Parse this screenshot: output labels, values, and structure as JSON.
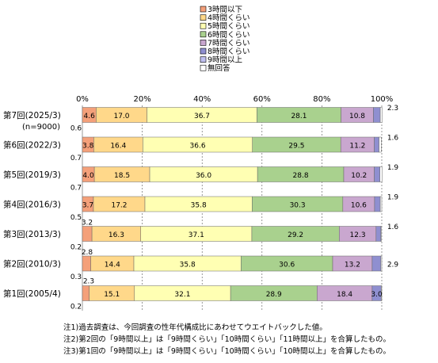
{
  "chart_data": {
    "type": "bar",
    "orientation": "horizontal",
    "stacked": true,
    "percent_stacked": true,
    "xlim": [
      0,
      100
    ],
    "x_ticks": [
      "0%",
      "20%",
      "40%",
      "60%",
      "80%",
      "100%"
    ],
    "grid": "vertical dashed",
    "legend": "top-center",
    "categories": [
      {
        "label": "第7回(2025/3)",
        "sublabel": "(n=9000)"
      },
      {
        "label": "第6回(2022/3)",
        "sublabel": ""
      },
      {
        "label": "第5回(2019/3)",
        "sublabel": ""
      },
      {
        "label": "第4回(2016/3)",
        "sublabel": ""
      },
      {
        "label": "第3回(2013/3)",
        "sublabel": ""
      },
      {
        "label": "第2回(2010/3)",
        "sublabel": ""
      },
      {
        "label": "第1回(2005/4)",
        "sublabel": ""
      }
    ],
    "series": [
      {
        "name": "3時間以下",
        "color": "#f4a07a",
        "values": [
          4.6,
          3.8,
          4.0,
          3.7,
          3.2,
          2.8,
          2.3
        ],
        "labels": [
          "4.6",
          "3.8",
          "4.0",
          "3.7",
          "3.2",
          "2.8",
          "2.3"
        ]
      },
      {
        "name": "4時間くらい",
        "color": "#ffd88a",
        "values": [
          17.0,
          16.4,
          18.5,
          17.2,
          16.3,
          14.4,
          15.1
        ],
        "labels": [
          "17.0",
          "16.4",
          "18.5",
          "17.2",
          "16.3",
          "14.4",
          "15.1"
        ]
      },
      {
        "name": "5時間くらい",
        "color": "#ffffb3",
        "values": [
          36.7,
          36.6,
          36.0,
          35.8,
          37.1,
          35.8,
          32.1
        ],
        "labels": [
          "36.7",
          "36.6",
          "36.0",
          "35.8",
          "37.1",
          "35.8",
          "32.1"
        ]
      },
      {
        "name": "6時間くらい",
        "color": "#a9d18e",
        "values": [
          28.1,
          29.5,
          28.8,
          30.3,
          29.2,
          30.6,
          28.9
        ],
        "labels": [
          "28.1",
          "29.5",
          "28.8",
          "30.3",
          "29.2",
          "30.6",
          "28.9"
        ]
      },
      {
        "name": "7時間くらい",
        "color": "#c9a7cf",
        "values": [
          10.8,
          11.2,
          10.2,
          10.6,
          12.3,
          13.2,
          18.4
        ],
        "labels": [
          "10.8",
          "11.2",
          "10.2",
          "10.6",
          "12.3",
          "13.2",
          "18.4"
        ]
      },
      {
        "name": "8時間くらい",
        "color": "#8f8fd0",
        "values": [
          2.3,
          1.6,
          1.9,
          1.9,
          1.6,
          2.9,
          3.0
        ],
        "labels": [
          "2.3",
          "1.6",
          "1.9",
          "1.9",
          "1.6",
          "2.9",
          "3.0"
        ]
      },
      {
        "name": "9時間以上",
        "color": "#bfbfef",
        "values": [
          0,
          0,
          0,
          0,
          0,
          0,
          0
        ],
        "labels": []
      },
      {
        "name": "無回答",
        "color": "#ffffff",
        "values": [
          0.6,
          0.7,
          0.7,
          0.5,
          0.2,
          0.3,
          0.2
        ],
        "labels": [
          "0.6",
          "0.7",
          "0.7",
          "0.5",
          "0.2",
          "0.3",
          "0.2"
        ]
      }
    ]
  },
  "notes": [
    "注1)過去調査は、今回調査の性年代構成比にあわせてウエイトバックした値。",
    "注2)第2回の「9時間以上」は「9時間くらい」「10時間くらい」「11時間以上」を合算したもの。",
    "注3)第1回の「9時間以上」は「9時間くらい」「10時間くらい」「10時間以上」を合算したもの。"
  ]
}
